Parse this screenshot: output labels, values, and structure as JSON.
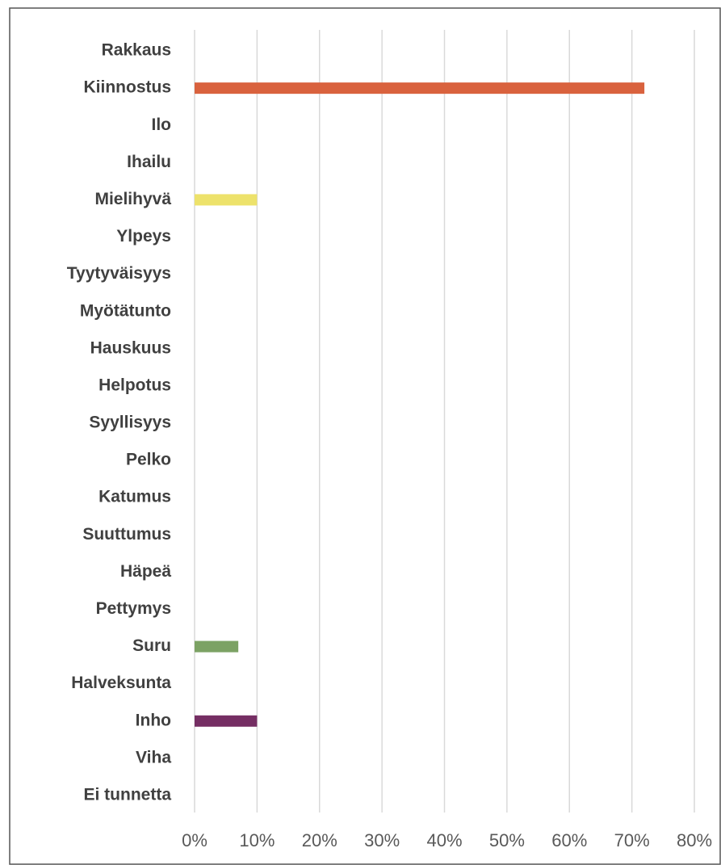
{
  "chart_data": {
    "type": "hbar",
    "categories": [
      "Rakkaus",
      "Kiinnostus",
      "Ilo",
      "Ihailu",
      "Mielihyvä",
      "Ylpeys",
      "Tyytyväisyys",
      "Myötätunto",
      "Hauskuus",
      "Helpotus",
      "Syyllisyys",
      "Pelko",
      "Katumus",
      "Suuttumus",
      "Häpeä",
      "Pettymys",
      "Suru",
      "Halveksunta",
      "Inho",
      "Viha",
      "Ei tunnetta"
    ],
    "values": [
      0,
      72,
      0,
      0,
      10,
      0,
      0,
      0,
      0,
      0,
      0,
      0,
      0,
      0,
      0,
      0,
      7,
      0,
      10,
      0,
      0
    ],
    "colors": [
      null,
      "#d9623e",
      null,
      null,
      "#ede26b",
      null,
      null,
      null,
      null,
      null,
      null,
      null,
      null,
      null,
      null,
      null,
      "#7ca264",
      null,
      "#752e63",
      null,
      null
    ],
    "xlim": [
      0,
      80
    ],
    "xticks": [
      {
        "value": 0,
        "label": "0%"
      },
      {
        "value": 10,
        "label": "10%"
      },
      {
        "value": 20,
        "label": "20%"
      },
      {
        "value": 30,
        "label": "30%"
      },
      {
        "value": 40,
        "label": "40%"
      },
      {
        "value": 50,
        "label": "50%"
      },
      {
        "value": 60,
        "label": "60%"
      },
      {
        "value": 70,
        "label": "70%"
      },
      {
        "value": 80,
        "label": "80%"
      }
    ],
    "grid": true
  }
}
